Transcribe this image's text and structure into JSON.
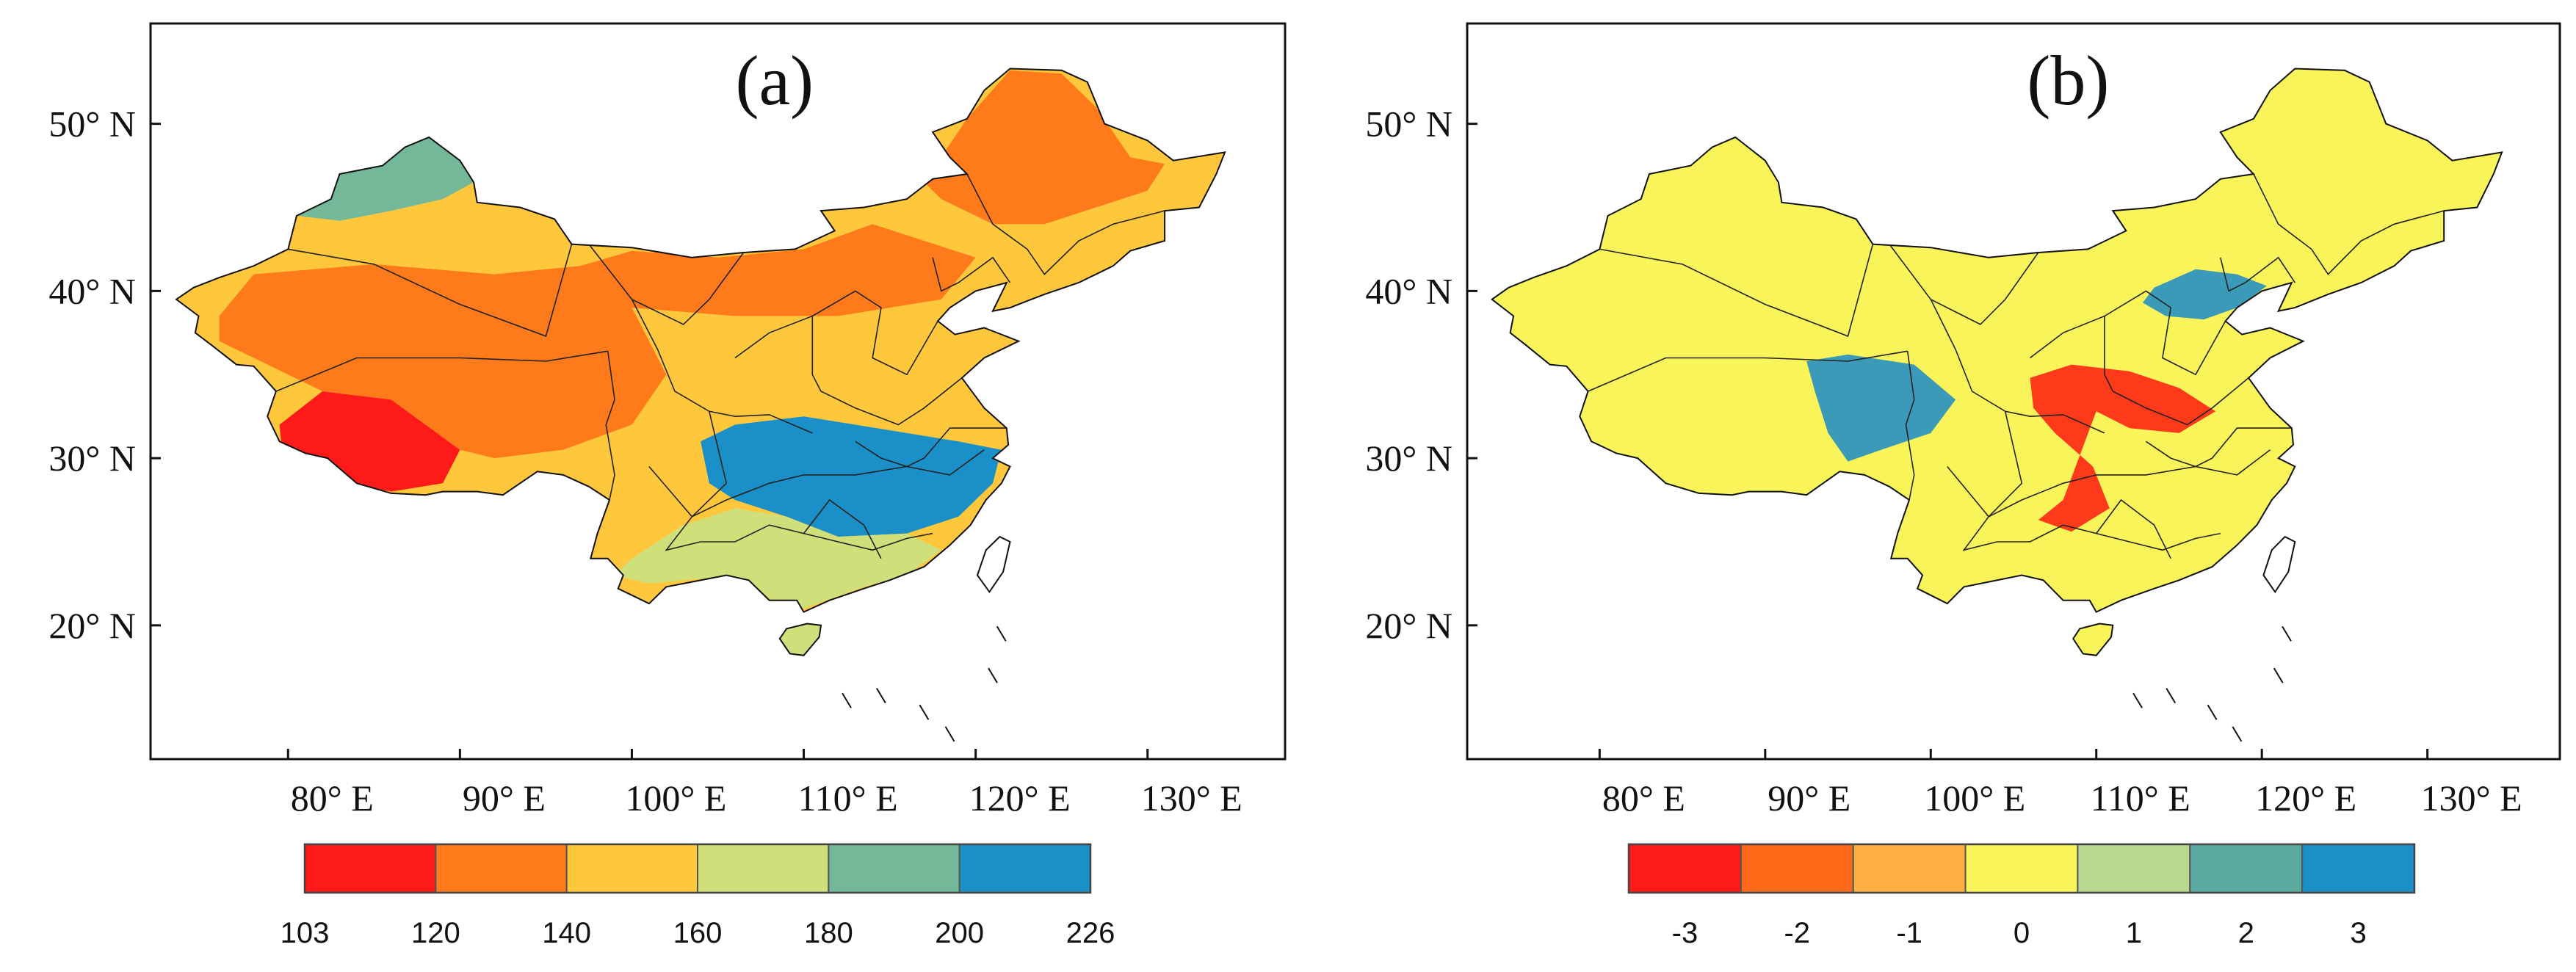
{
  "chart_data": [
    {
      "type": "heatmap",
      "panel_label": "(a)",
      "title": "",
      "lat_ticks": [
        {
          "value": 50,
          "label": "50° N"
        },
        {
          "value": 40,
          "label": "40° N"
        },
        {
          "value": 30,
          "label": "30° N"
        },
        {
          "value": 20,
          "label": "20° N"
        }
      ],
      "lon_ticks": [
        {
          "value": 80,
          "label": "80° E"
        },
        {
          "value": 90,
          "label": "90° E"
        },
        {
          "value": 100,
          "label": "100° E"
        },
        {
          "value": 110,
          "label": "110° E"
        },
        {
          "value": 120,
          "label": "120° E"
        },
        {
          "value": 130,
          "label": "130° E"
        }
      ],
      "lon_range": [
        72,
        138
      ],
      "lat_range": [
        12,
        56
      ],
      "colorbar": {
        "boundaries": [
          "103",
          "120",
          "140",
          "160",
          "180",
          "200",
          "226"
        ],
        "colors": [
          "#ff1a1a",
          "#ff7a1a",
          "#ffc83c",
          "#cfe07a",
          "#74b89a",
          "#1a8fc8"
        ]
      },
      "regions": [
        {
          "name": "southwest-tibet",
          "color": "#ff1a1a"
        },
        {
          "name": "tarim-qinghai",
          "color": "#ff7a1a"
        },
        {
          "name": "northern-belt",
          "color": "#ff7a1a"
        },
        {
          "name": "northeast",
          "color": "#ff7a1a"
        },
        {
          "name": "northwest-xinjiang",
          "color": "#74b89a"
        },
        {
          "name": "central-south",
          "color": "#1a8fc8"
        },
        {
          "name": "south-china",
          "color": "#cfe07a"
        }
      ]
    },
    {
      "type": "heatmap",
      "panel_label": "(b)",
      "title": "",
      "lat_ticks": [
        {
          "value": 50,
          "label": "50° N"
        },
        {
          "value": 40,
          "label": "40° N"
        },
        {
          "value": 30,
          "label": "30° N"
        },
        {
          "value": 20,
          "label": "20° N"
        }
      ],
      "lon_ticks": [
        {
          "value": 80,
          "label": "80° E"
        },
        {
          "value": 90,
          "label": "90° E"
        },
        {
          "value": 100,
          "label": "100° E"
        },
        {
          "value": 110,
          "label": "110° E"
        },
        {
          "value": 120,
          "label": "120° E"
        },
        {
          "value": 130,
          "label": "130° E"
        }
      ],
      "lon_range": [
        72,
        138
      ],
      "lat_range": [
        12,
        56
      ],
      "colorbar": {
        "boundaries": [
          "-3",
          "-2",
          "-1",
          "0",
          "1",
          "2",
          "3"
        ],
        "colors": [
          "#ff1a1a",
          "#ff6a1a",
          "#ffb040",
          "#f8f45a",
          "#b8d890",
          "#5aaaa0",
          "#1a8fc8"
        ]
      },
      "regions": [
        {
          "name": "background",
          "color": "#f8f45a"
        },
        {
          "name": "central-negative",
          "color": "#ff3a1a"
        },
        {
          "name": "qinghai-positive",
          "color": "#3a9ab8"
        },
        {
          "name": "north-china-positive",
          "color": "#3a9ab8"
        }
      ]
    }
  ]
}
